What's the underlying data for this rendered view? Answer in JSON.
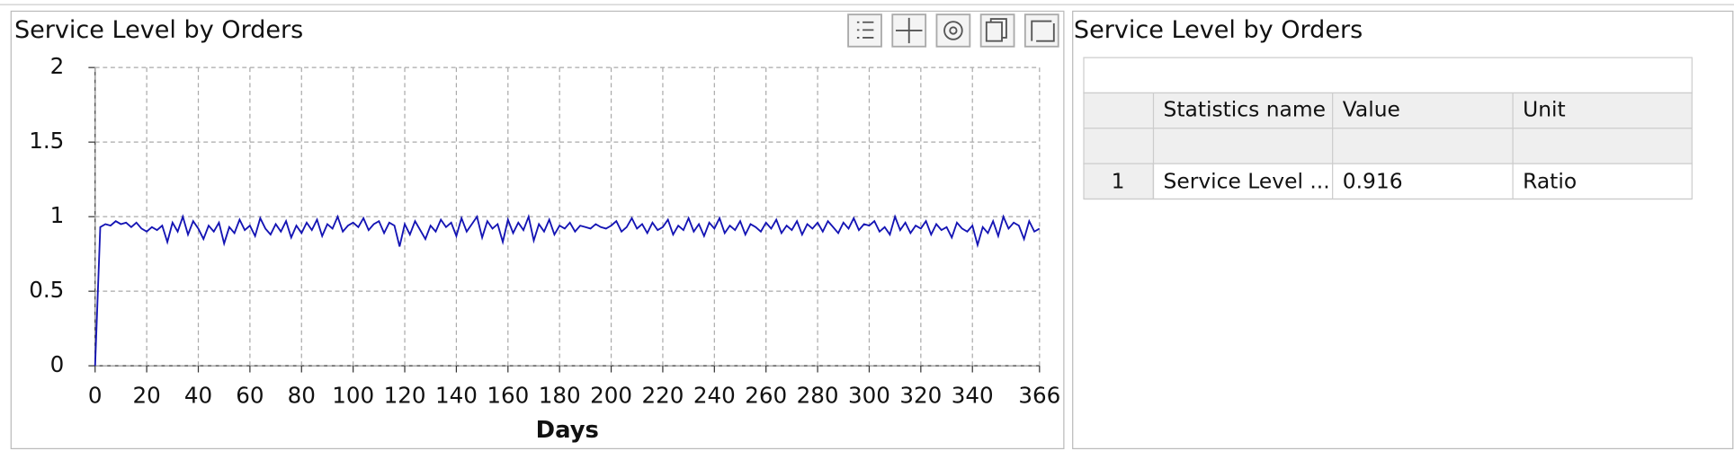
{
  "chart_data": {
    "type": "line",
    "title": "Service Level by Orders",
    "x_label": "Days",
    "x": [
      0,
      2,
      4,
      6,
      8,
      10,
      12,
      14,
      16,
      18,
      20,
      22,
      24,
      26,
      28,
      30,
      32,
      34,
      36,
      38,
      40,
      42,
      44,
      46,
      48,
      50,
      52,
      54,
      56,
      58,
      60,
      62,
      64,
      66,
      68,
      70,
      72,
      74,
      76,
      78,
      80,
      82,
      84,
      86,
      88,
      90,
      92,
      94,
      96,
      98,
      100,
      102,
      104,
      106,
      108,
      110,
      112,
      114,
      116,
      118,
      120,
      122,
      124,
      126,
      128,
      130,
      132,
      134,
      136,
      138,
      140,
      142,
      144,
      146,
      148,
      150,
      152,
      154,
      156,
      158,
      160,
      162,
      164,
      166,
      168,
      170,
      172,
      174,
      176,
      178,
      180,
      182,
      184,
      186,
      188,
      190,
      192,
      194,
      196,
      198,
      200,
      202,
      204,
      206,
      208,
      210,
      212,
      214,
      216,
      218,
      220,
      222,
      224,
      226,
      228,
      230,
      232,
      234,
      236,
      238,
      240,
      242,
      244,
      246,
      248,
      250,
      252,
      254,
      256,
      258,
      260,
      262,
      264,
      266,
      268,
      270,
      272,
      274,
      276,
      278,
      280,
      282,
      284,
      286,
      288,
      290,
      292,
      294,
      296,
      298,
      300,
      302,
      304,
      306,
      308,
      310,
      312,
      314,
      316,
      318,
      320,
      322,
      324,
      326,
      328,
      330,
      332,
      334,
      336,
      338,
      340,
      342,
      344,
      346,
      348,
      350,
      352,
      354,
      356,
      358,
      360,
      362,
      364,
      366
    ],
    "series": [
      {
        "color": "#1414b4",
        "values": [
          0,
          0.93,
          0.95,
          0.94,
          0.97,
          0.95,
          0.96,
          0.93,
          0.96,
          0.92,
          0.9,
          0.93,
          0.91,
          0.94,
          0.83,
          0.96,
          0.9,
          1.0,
          0.88,
          0.97,
          0.92,
          0.85,
          0.94,
          0.9,
          0.96,
          0.82,
          0.93,
          0.89,
          0.98,
          0.91,
          0.94,
          0.87,
          0.99,
          0.92,
          0.88,
          0.95,
          0.9,
          0.97,
          0.86,
          0.94,
          0.89,
          0.96,
          0.91,
          0.98,
          0.87,
          0.95,
          0.92,
          1.0,
          0.9,
          0.94,
          0.96,
          0.93,
          0.99,
          0.91,
          0.95,
          0.97,
          0.89,
          0.96,
          0.94,
          0.8,
          0.95,
          0.88,
          0.97,
          0.91,
          0.85,
          0.94,
          0.9,
          0.98,
          0.93,
          0.96,
          0.87,
          0.99,
          0.9,
          0.95,
          1.0,
          0.86,
          0.97,
          0.92,
          0.95,
          0.83,
          0.98,
          0.89,
          0.96,
          0.91,
          1.0,
          0.84,
          0.95,
          0.9,
          0.98,
          0.88,
          0.94,
          0.92,
          0.96,
          0.9,
          0.94,
          0.93,
          0.92,
          0.95,
          0.93,
          0.92,
          0.94,
          0.97,
          0.9,
          0.93,
          0.99,
          0.92,
          0.95,
          0.89,
          0.96,
          0.91,
          0.93,
          0.98,
          0.88,
          0.94,
          0.91,
          0.99,
          0.9,
          0.95,
          0.87,
          0.96,
          0.92,
          0.99,
          0.89,
          0.94,
          0.91,
          0.97,
          0.88,
          0.95,
          0.93,
          0.9,
          0.96,
          0.92,
          0.98,
          0.89,
          0.94,
          0.91,
          0.97,
          0.88,
          0.95,
          0.92,
          0.96,
          0.9,
          0.97,
          0.93,
          0.89,
          0.96,
          0.92,
          0.99,
          0.91,
          0.95,
          0.94,
          0.97,
          0.9,
          0.93,
          0.88,
          1.0,
          0.91,
          0.96,
          0.89,
          0.94,
          0.92,
          0.97,
          0.88,
          0.95,
          0.91,
          0.93,
          0.86,
          0.96,
          0.92,
          0.9,
          0.94,
          0.81,
          0.93,
          0.89,
          0.97,
          0.87,
          1.0,
          0.92,
          0.96,
          0.94,
          0.85,
          0.97,
          0.9,
          0.92
        ]
      }
    ],
    "xlim": [
      0,
      366
    ],
    "xticks": [
      0,
      20,
      40,
      60,
      80,
      100,
      120,
      140,
      160,
      180,
      200,
      220,
      240,
      260,
      280,
      300,
      320,
      340,
      366
    ],
    "ylim": [
      0,
      2
    ],
    "yticks": [
      0,
      0.5,
      1,
      1.5,
      2
    ],
    "grid": true
  },
  "table": {
    "title": "Service Level by Orders",
    "columns": [
      "",
      "Statistics name",
      "Value",
      "Unit"
    ],
    "rows": [
      [
        "1",
        "Service Level ...",
        "0.916",
        "Ratio"
      ]
    ]
  }
}
